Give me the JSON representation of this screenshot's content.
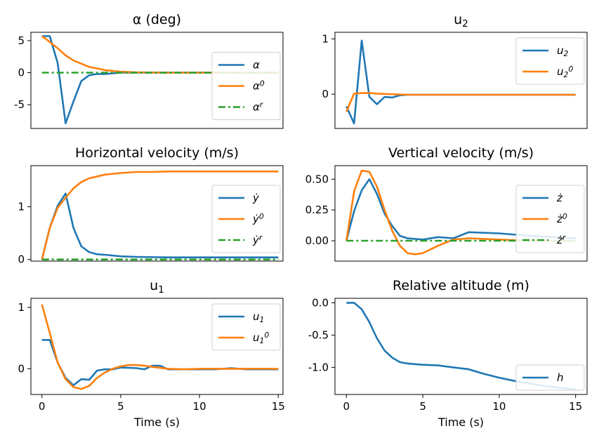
{
  "colors": {
    "blue": "#1f77b4",
    "orange": "#ff7f0e",
    "green": "#2ca02c"
  },
  "chart_data": [
    {
      "id": "alpha",
      "type": "line",
      "title": "α (deg)",
      "xlabel": "",
      "ylabel": "",
      "xlim": [
        -0.7,
        15.3
      ],
      "ylim": [
        -8.7,
        6.3
      ],
      "yticks": [
        5,
        0,
        -5
      ],
      "ytick_labels": [
        "5",
        "0",
        "-5"
      ],
      "xticks": [],
      "xtick_labels": [],
      "legend_position": "right",
      "series": [
        {
          "name": "α",
          "color": "blue",
          "dash": "solid",
          "x": [
            0,
            0.5,
            1,
            1.5,
            2,
            2.5,
            3,
            3.5,
            4,
            4.5,
            5,
            6,
            8,
            10,
            12,
            15
          ],
          "y": [
            5.7,
            5.7,
            1.5,
            -7.9,
            -4.5,
            -1.3,
            -0.4,
            -0.2,
            -0.2,
            -0.1,
            0,
            0,
            0,
            0,
            0,
            0
          ]
        },
        {
          "name": "α⁰",
          "color": "orange",
          "dash": "solid",
          "x": [
            0,
            0.5,
            1,
            1.5,
            2,
            3,
            4,
            5,
            6,
            8,
            10,
            15
          ],
          "y": [
            5.7,
            4.8,
            3.8,
            2.7,
            1.9,
            0.9,
            0.4,
            0.15,
            0.05,
            0,
            0,
            0
          ]
        },
        {
          "name": "αʳ",
          "color": "green",
          "dash": "dashdot",
          "x": [
            0,
            15
          ],
          "y": [
            0,
            0
          ]
        }
      ]
    },
    {
      "id": "u2",
      "type": "line",
      "title": "u₂",
      "xlabel": "",
      "ylabel": "",
      "xlim": [
        -0.75,
        15.75
      ],
      "ylim": [
        -0.62,
        1.12
      ],
      "yticks": [
        1,
        0
      ],
      "ytick_labels": [
        "1",
        "0"
      ],
      "xticks": [],
      "xtick_labels": [],
      "legend_position": "top-right",
      "series": [
        {
          "name": "u₂",
          "color": "blue",
          "dash": "solid",
          "x": [
            0,
            0.5,
            1,
            1.5,
            2,
            2.5,
            3,
            3.5,
            4,
            5,
            6,
            8,
            10,
            12,
            15
          ],
          "y": [
            -0.22,
            -0.53,
            0.97,
            -0.05,
            -0.18,
            -0.05,
            -0.06,
            -0.02,
            -0.01,
            -0.01,
            -0.01,
            -0.01,
            -0.01,
            -0.01,
            -0.01
          ]
        },
        {
          "name": "u₂⁰",
          "color": "orange",
          "dash": "solid",
          "x": [
            0,
            0.5,
            1,
            1.5,
            2,
            3,
            4,
            6,
            8,
            10,
            15
          ],
          "y": [
            -0.32,
            0.01,
            0.02,
            0.02,
            0.01,
            0.0,
            -0.01,
            -0.01,
            -0.01,
            -0.01,
            -0.01
          ]
        }
      ]
    },
    {
      "id": "hvel",
      "type": "line",
      "title": "Horizontal velocity (m/s)",
      "xlabel": "",
      "ylabel": "",
      "xlim": [
        -0.7,
        15.3
      ],
      "ylim": [
        -0.03,
        1.78
      ],
      "yticks": [
        1,
        0
      ],
      "ytick_labels": [
        "1",
        "0"
      ],
      "xticks": [],
      "xtick_labels": [],
      "legend_position": "right",
      "series": [
        {
          "name": "ẏ",
          "color": "blue",
          "dash": "solid",
          "x": [
            0,
            0.5,
            1,
            1.5,
            2,
            2.5,
            3,
            3.5,
            4,
            5,
            6,
            8,
            10,
            12,
            15
          ],
          "y": [
            0,
            0.6,
            1.02,
            1.25,
            0.6,
            0.25,
            0.14,
            0.1,
            0.09,
            0.06,
            0.05,
            0.04,
            0.04,
            0.04,
            0.04
          ]
        },
        {
          "name": "ẏ⁰",
          "color": "orange",
          "dash": "solid",
          "x": [
            0,
            0.5,
            1,
            1.5,
            2,
            2.5,
            3,
            4,
            5,
            6,
            7,
            8,
            10,
            12,
            15
          ],
          "y": [
            0,
            0.6,
            0.98,
            1.17,
            1.35,
            1.47,
            1.54,
            1.61,
            1.64,
            1.66,
            1.66,
            1.67,
            1.67,
            1.67,
            1.67
          ]
        },
        {
          "name": "ẏʳ",
          "color": "green",
          "dash": "dashdot",
          "x": [
            0,
            15
          ],
          "y": [
            0,
            0
          ]
        }
      ]
    },
    {
      "id": "vvel",
      "type": "line",
      "title": "Vertical velocity (m/s)",
      "xlabel": "",
      "ylabel": "",
      "xlim": [
        -0.75,
        15.75
      ],
      "ylim": [
        -0.165,
        0.61
      ],
      "yticks": [
        0.5,
        0.25,
        0.0
      ],
      "ytick_labels": [
        "0.50",
        "0.25",
        "0.00"
      ],
      "xticks": [],
      "xtick_labels": [],
      "legend_position": "right",
      "series": [
        {
          "name": "ż",
          "color": "blue",
          "dash": "solid",
          "x": [
            0,
            0.5,
            1,
            1.5,
            2,
            2.5,
            3,
            3.5,
            4,
            5,
            6,
            7,
            8,
            10,
            12,
            15
          ],
          "y": [
            0,
            0.24,
            0.41,
            0.5,
            0.38,
            0.22,
            0.12,
            0.04,
            0.02,
            0.01,
            0.03,
            0.02,
            0.07,
            0.06,
            0.04,
            0.02
          ]
        },
        {
          "name": "ż⁰",
          "color": "orange",
          "dash": "solid",
          "x": [
            0,
            0.5,
            1,
            1.5,
            2,
            2.5,
            3,
            3.5,
            4,
            4.5,
            5,
            6,
            7,
            8,
            10,
            12,
            15
          ],
          "y": [
            0,
            0.4,
            0.57,
            0.56,
            0.44,
            0.25,
            0.08,
            -0.04,
            -0.1,
            -0.11,
            -0.1,
            -0.04,
            0.01,
            0.02,
            0.01,
            0.0,
            0.0
          ]
        },
        {
          "name": "żʳ",
          "color": "green",
          "dash": "dashdot",
          "x": [
            0,
            15
          ],
          "y": [
            0,
            0
          ]
        }
      ]
    },
    {
      "id": "u1",
      "type": "line",
      "title": "u₁",
      "xlabel": "Time (s)",
      "ylabel": "",
      "xlim": [
        -0.7,
        15.3
      ],
      "ylim": [
        -0.42,
        1.15
      ],
      "yticks": [
        1,
        0
      ],
      "ytick_labels": [
        "1",
        "0"
      ],
      "xticks": [
        0,
        5,
        10,
        15
      ],
      "xtick_labels": [
        "0",
        "5",
        "10",
        "15"
      ],
      "legend_position": "top-right",
      "series": [
        {
          "name": "u₁",
          "color": "blue",
          "dash": "solid",
          "x": [
            0,
            0.5,
            1,
            1.5,
            2,
            2.5,
            3,
            3.5,
            4,
            4.5,
            5,
            6,
            6.5,
            7,
            7.5,
            8,
            9,
            10,
            11,
            12,
            13,
            14,
            15
          ],
          "y": [
            0.47,
            0.47,
            0.1,
            -0.15,
            -0.27,
            -0.17,
            -0.18,
            -0.03,
            -0.01,
            -0.01,
            0.02,
            0.01,
            -0.01,
            0.05,
            0.05,
            -0.01,
            -0.01,
            -0.01,
            -0.01,
            0.01,
            -0.01,
            -0.01,
            -0.01
          ]
        },
        {
          "name": "u₁⁰",
          "color": "orange",
          "dash": "solid",
          "x": [
            0,
            0.5,
            1,
            1.5,
            2,
            2.5,
            3,
            3.5,
            4,
            4.5,
            5,
            5.5,
            6,
            6.5,
            7,
            8,
            9,
            10,
            12,
            15
          ],
          "y": [
            1.05,
            0.58,
            0.1,
            -0.17,
            -0.3,
            -0.33,
            -0.28,
            -0.15,
            -0.06,
            0.0,
            0.04,
            0.06,
            0.06,
            0.05,
            0.03,
            0.0,
            -0.01,
            0.0,
            0.0,
            0.0
          ]
        }
      ]
    },
    {
      "id": "alt",
      "type": "line",
      "title": "Relative altitude (m)",
      "xlabel": "Time (s)",
      "ylabel": "",
      "xlim": [
        -0.75,
        15.75
      ],
      "ylim": [
        -1.42,
        0.07
      ],
      "yticks": [
        0.0,
        -0.5,
        -1.0
      ],
      "ytick_labels": [
        "0.0",
        "-0.5",
        "-1.0"
      ],
      "xticks": [
        0,
        5,
        10,
        15
      ],
      "xtick_labels": [
        "0",
        "5",
        "10",
        "15"
      ],
      "legend_position": "bottom-right",
      "series": [
        {
          "name": "h",
          "color": "blue",
          "dash": "solid",
          "x": [
            0,
            0.5,
            1,
            1.5,
            2,
            2.5,
            3,
            3.5,
            4,
            5,
            6,
            7,
            8,
            9,
            10,
            11,
            12,
            13,
            14,
            15
          ],
          "y": [
            0,
            0,
            -0.1,
            -0.3,
            -0.55,
            -0.74,
            -0.85,
            -0.92,
            -0.94,
            -0.96,
            -0.97,
            -1.0,
            -1.03,
            -1.1,
            -1.16,
            -1.21,
            -1.25,
            -1.29,
            -1.32,
            -1.34
          ]
        }
      ]
    }
  ]
}
